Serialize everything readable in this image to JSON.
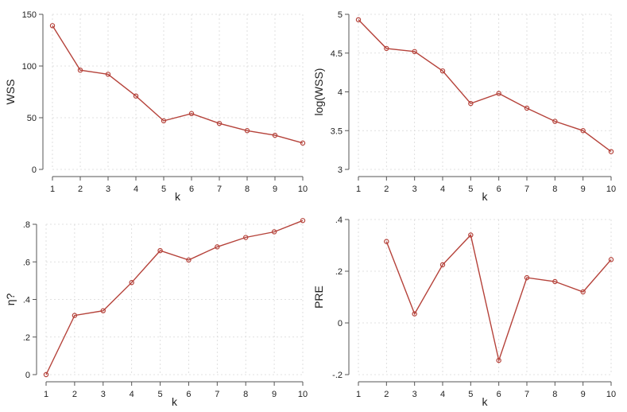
{
  "colors": {
    "series": "#b5423a"
  },
  "chart_data": [
    {
      "type": "line",
      "xlabel": "k",
      "ylabel": "WSS",
      "x": [
        1,
        2,
        3,
        4,
        5,
        6,
        7,
        8,
        9,
        10
      ],
      "values": [
        139,
        96,
        92,
        71,
        47,
        54,
        44.5,
        37.5,
        33,
        25.5
      ],
      "xlim": [
        1,
        10
      ],
      "ylim": [
        0,
        150
      ],
      "xticks": [
        1,
        2,
        3,
        4,
        5,
        6,
        7,
        8,
        9,
        10
      ],
      "xtick_labels": [
        "1",
        "2",
        "3",
        "4",
        "5",
        "6",
        "7",
        "8",
        "9",
        "10"
      ],
      "yticks": [
        0,
        50,
        100,
        150
      ],
      "ytick_labels": [
        "0",
        "50",
        "100",
        "150"
      ],
      "grid": true
    },
    {
      "type": "line",
      "xlabel": "k",
      "ylabel": "log(WSS)",
      "x": [
        1,
        2,
        3,
        4,
        5,
        6,
        7,
        8,
        9,
        10
      ],
      "values": [
        4.93,
        4.56,
        4.52,
        4.27,
        3.85,
        3.98,
        3.79,
        3.62,
        3.5,
        3.23
      ],
      "xlim": [
        1,
        10
      ],
      "ylim": [
        3,
        5
      ],
      "xticks": [
        1,
        2,
        3,
        4,
        5,
        6,
        7,
        8,
        9,
        10
      ],
      "xtick_labels": [
        "1",
        "2",
        "3",
        "4",
        "5",
        "6",
        "7",
        "8",
        "9",
        "10"
      ],
      "yticks": [
        3,
        3.5,
        4,
        4.5,
        5
      ],
      "ytick_labels": [
        "3",
        "3.5",
        "4",
        "4.5",
        "5"
      ],
      "grid": true
    },
    {
      "type": "line",
      "xlabel": "k",
      "ylabel": "η?",
      "x": [
        1,
        2,
        3,
        4,
        5,
        6,
        7,
        8,
        9,
        10
      ],
      "values": [
        0,
        0.315,
        0.34,
        0.49,
        0.66,
        0.61,
        0.68,
        0.73,
        0.76,
        0.82
      ],
      "xlim": [
        1,
        10
      ],
      "ylim": [
        0,
        0.8
      ],
      "xticks": [
        1,
        2,
        3,
        4,
        5,
        6,
        7,
        8,
        9,
        10
      ],
      "xtick_labels": [
        "1",
        "2",
        "3",
        "4",
        "5",
        "6",
        "7",
        "8",
        "9",
        "10"
      ],
      "yticks": [
        0,
        0.2,
        0.4,
        0.6,
        0.8
      ],
      "ytick_labels": [
        "0",
        ".2",
        ".4",
        ".6",
        ".8"
      ],
      "grid": true
    },
    {
      "type": "line",
      "xlabel": "k",
      "ylabel": "PRE",
      "x": [
        2,
        3,
        4,
        5,
        6,
        7,
        8,
        9,
        10
      ],
      "values": [
        0.315,
        0.035,
        0.225,
        0.34,
        -0.145,
        0.175,
        0.16,
        0.12,
        0.245
      ],
      "xlim": [
        1,
        10
      ],
      "ylim": [
        -0.2,
        0.4
      ],
      "xticks": [
        1,
        2,
        3,
        4,
        5,
        6,
        7,
        8,
        9,
        10
      ],
      "xtick_labels": [
        "1",
        "2",
        "3",
        "4",
        "5",
        "6",
        "7",
        "8",
        "9",
        "10"
      ],
      "yticks": [
        -0.2,
        0,
        0.2,
        0.4
      ],
      "ytick_labels": [
        "-.2",
        "0",
        ".2",
        ".4"
      ],
      "grid": true
    }
  ]
}
